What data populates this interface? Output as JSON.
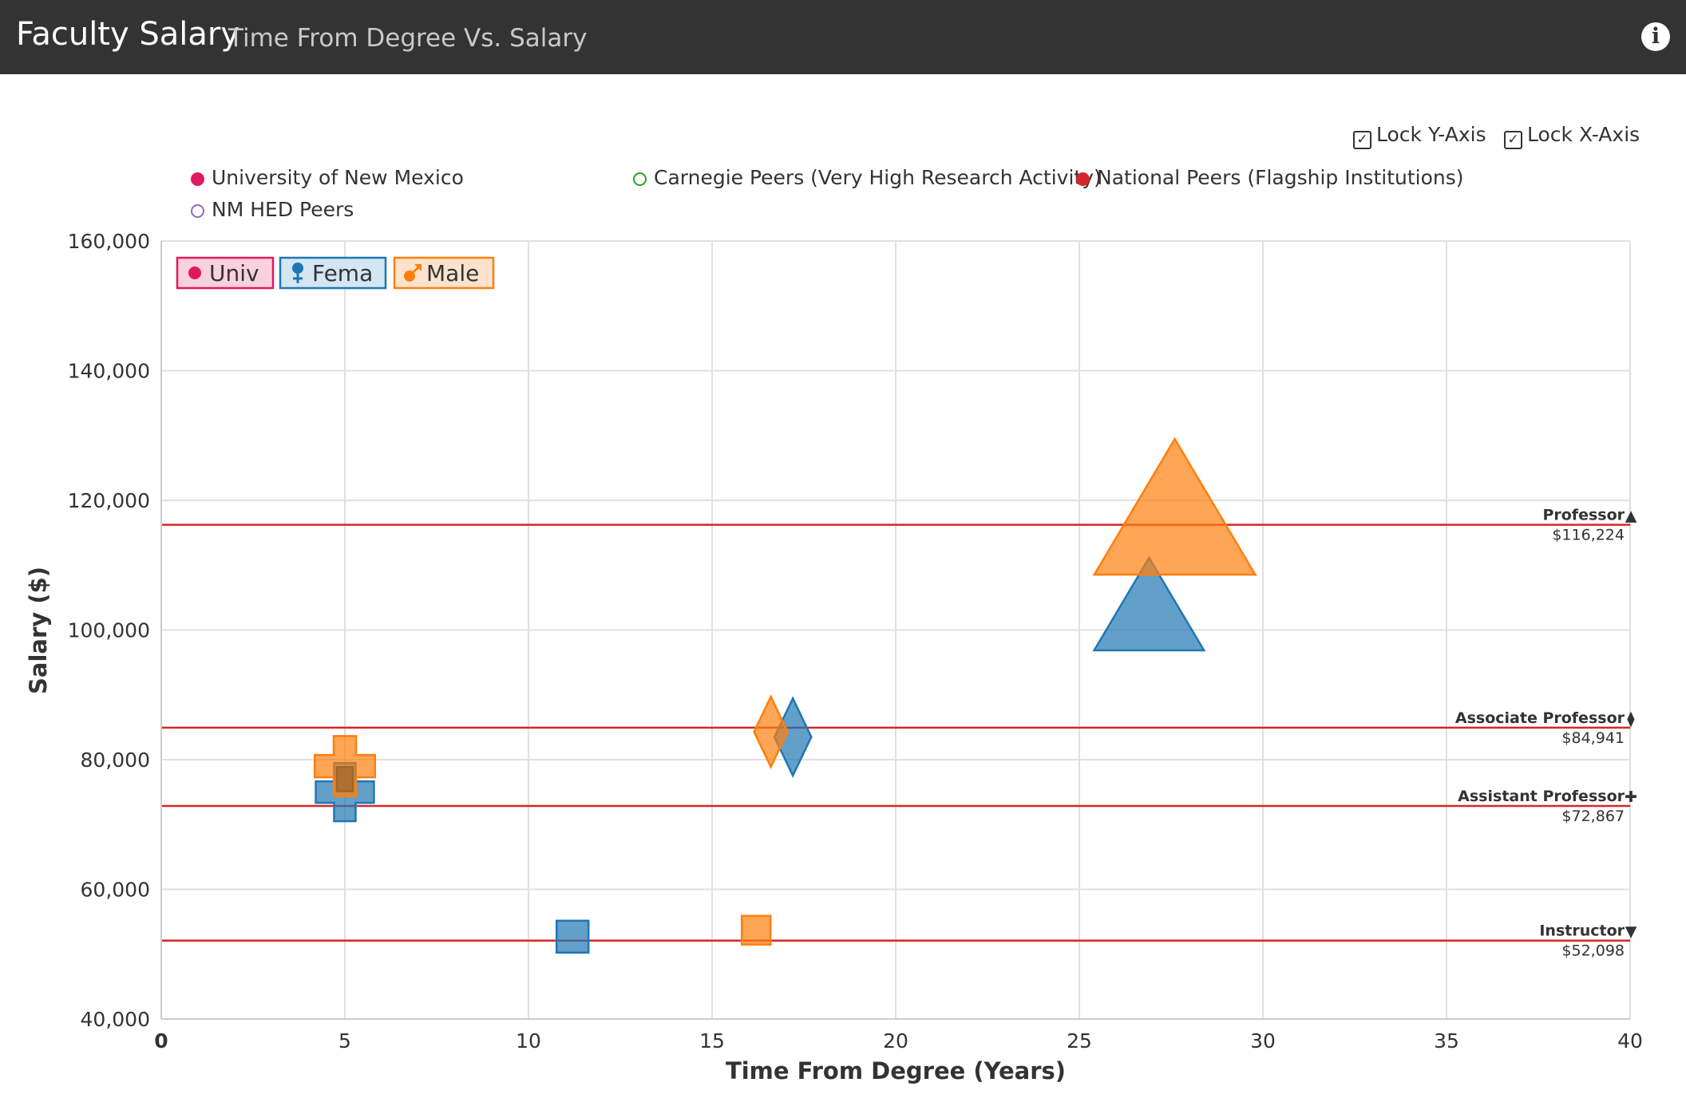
{
  "header": {
    "title": "Faculty Salary",
    "subtitle": "Time From Degree Vs. Salary",
    "info_icon": "info-circle-icon"
  },
  "controls": {
    "lock_y": {
      "label": "Lock Y-Axis",
      "checked": true
    },
    "lock_x": {
      "label": "Lock X-Axis",
      "checked": true
    }
  },
  "legend": [
    {
      "label": "University of New Mexico",
      "color": "#e0195f",
      "filled": true
    },
    {
      "label": "Carnegie Peers (Very High Research Activity)",
      "color": "#2ca02c",
      "filled": false
    },
    {
      "label": "National Peers (Flagship Institutions)",
      "color": "#d62728",
      "filled": true
    },
    {
      "label": "NM HED Peers",
      "color": "#9467bd",
      "filled": false
    }
  ],
  "filters": [
    {
      "label": "Univ",
      "icon": "circle-icon",
      "color": "#e0195f",
      "bg": "#f9d1df"
    },
    {
      "label": "Fema",
      "icon": "female-icon",
      "color": "#1f77b4",
      "bg": "#d4e6f3"
    },
    {
      "label": "Male",
      "icon": "male-icon",
      "color": "#ff7f0e",
      "bg": "#fde3cc"
    }
  ],
  "chart_data": {
    "type": "scatter",
    "xlabel": "Time From Degree (Years)",
    "ylabel": "Salary ($)",
    "xlim": [
      0,
      40
    ],
    "ylim": [
      40000,
      160000
    ],
    "xticks": [
      0,
      5,
      10,
      15,
      20,
      25,
      30,
      35,
      40
    ],
    "yticks": [
      40000,
      60000,
      80000,
      100000,
      120000,
      140000,
      160000
    ],
    "ytick_labels": [
      "40,000",
      "60,000",
      "80,000",
      "100,000",
      "120,000",
      "140,000",
      "160,000"
    ],
    "grid": true,
    "series": [
      {
        "name": "Fema",
        "color": "#1f77b4",
        "points": [
          {
            "rank": "Instructor",
            "x": 11.2,
            "y": 52700
          },
          {
            "rank": "Assistant Professor",
            "x": 5.0,
            "y": 75000
          },
          {
            "rank": "Associate Professor",
            "x": 17.2,
            "y": 83500
          },
          {
            "rank": "Professor",
            "x": 26.9,
            "y": 104000
          }
        ]
      },
      {
        "name": "Male",
        "color": "#ff7f0e",
        "points": [
          {
            "rank": "Instructor",
            "x": 16.2,
            "y": 53700
          },
          {
            "rank": "Assistant Professor",
            "x": 5.0,
            "y": 79000
          },
          {
            "rank": "Associate Professor",
            "x": 16.6,
            "y": 84300
          },
          {
            "rank": "Professor",
            "x": 27.6,
            "y": 119000
          }
        ]
      },
      {
        "name": "Univ",
        "color": "#a0662a",
        "points": [
          {
            "rank": "Assistant Professor",
            "x": 5.0,
            "y": 77000
          }
        ]
      }
    ],
    "reference_lines": [
      {
        "rank": "Professor",
        "value": 116224,
        "label": "$116,224",
        "symbol": "▲"
      },
      {
        "rank": "Associate Professor",
        "value": 84941,
        "label": "$84,941",
        "symbol": "⧫"
      },
      {
        "rank": "Assistant Professor",
        "value": 72867,
        "label": "$72,867",
        "symbol": "✚"
      },
      {
        "rank": "Instructor",
        "value": 52098,
        "label": "$52,098",
        "symbol": "▼"
      }
    ],
    "reference_line_color": "#d62728"
  }
}
